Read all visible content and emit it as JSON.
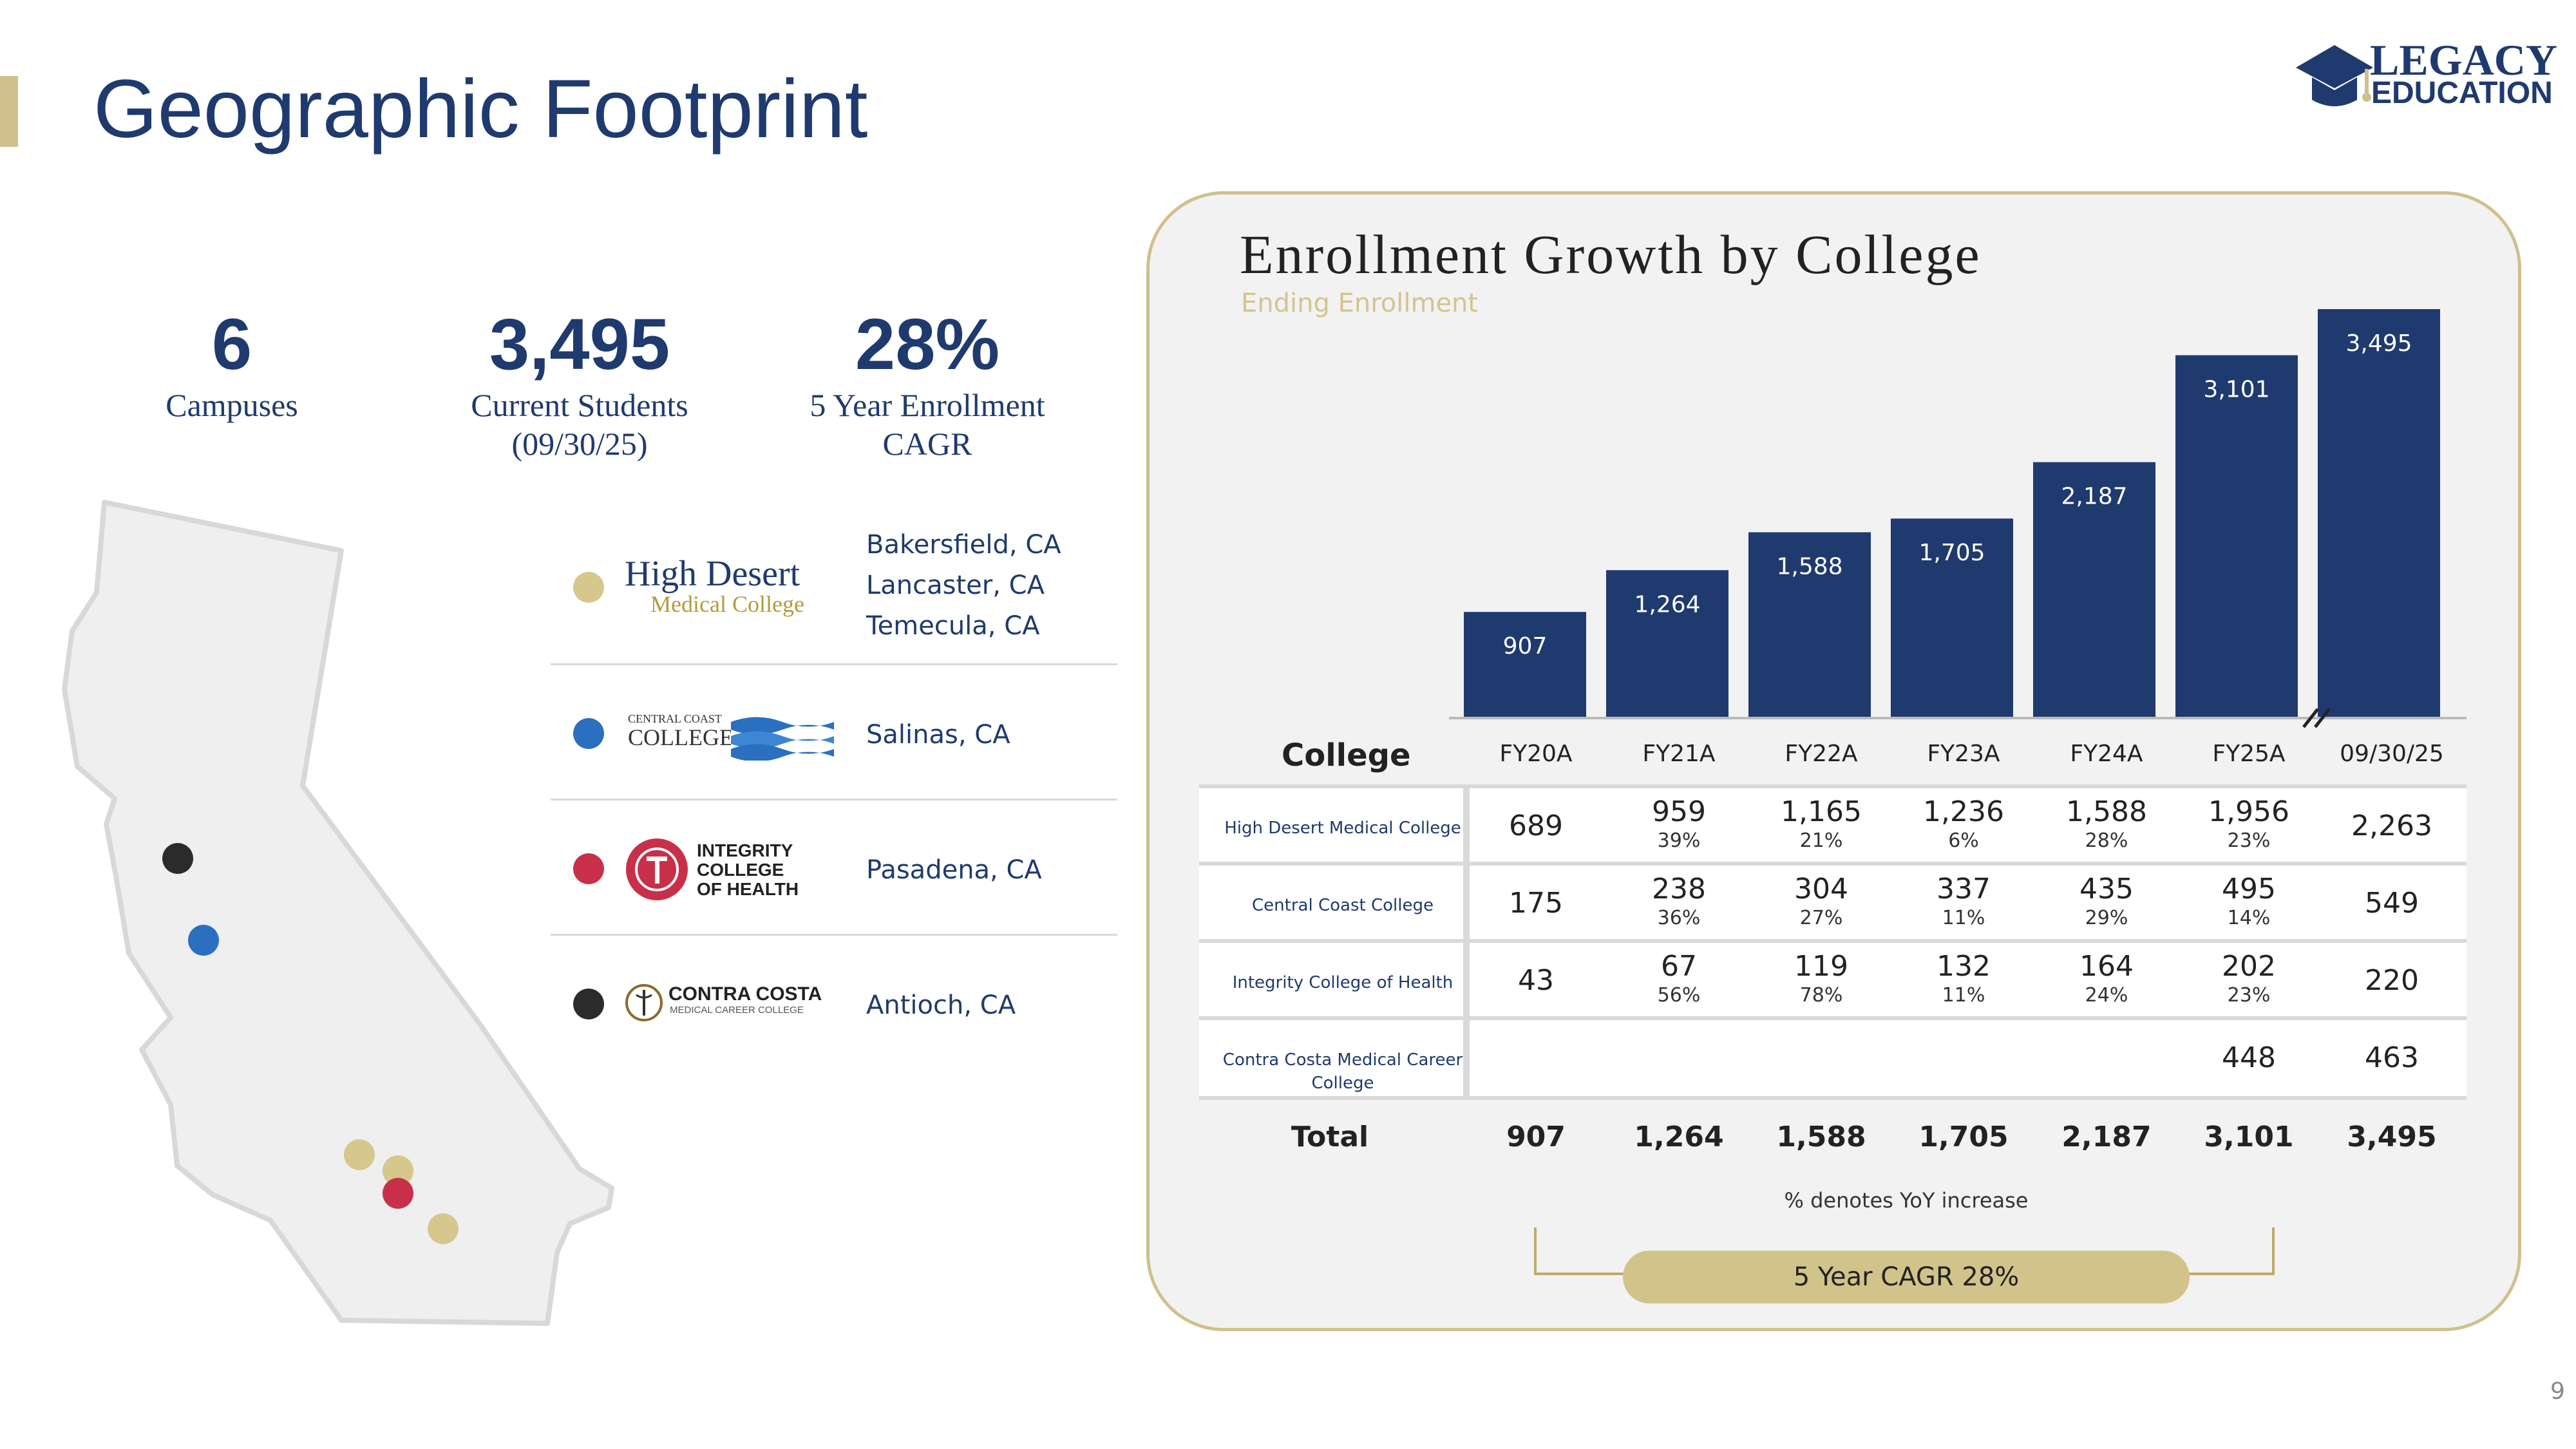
{
  "page": {
    "title": "Geographic Footprint",
    "page_number": "9"
  },
  "logo": {
    "line1": "LEGACY",
    "line2": "EDUCATION",
    "icon": "graduation-cap-icon"
  },
  "stats": [
    {
      "value": "6",
      "label": "Campuses",
      "label2": ""
    },
    {
      "value": "3,495",
      "label": "Current Students",
      "label2": "(09/30/25)"
    },
    {
      "value": "28%",
      "label": "5 Year Enrollment",
      "label2": "CAGR"
    }
  ],
  "colors": {
    "navy": "#1f3a6e",
    "gold": "#cfc08d",
    "blue": "#2a6fc0",
    "red": "#c8304a",
    "black": "#2b2b2b"
  },
  "colleges": [
    {
      "name_line1": "High Desert",
      "name_line2": "Medical College",
      "dot": "#d6c78d",
      "locations": [
        "Bakersfield, CA",
        "Lancaster, CA",
        "Temecula, CA"
      ]
    },
    {
      "name_line1": "CENTRAL COAST",
      "name_line2": "COLLEGE",
      "dot": "#2a6fc0",
      "locations": [
        "Salinas, CA"
      ]
    },
    {
      "name_line1": "INTEGRITY",
      "name_line2": "COLLEGE",
      "name_line3": "OF HEALTH",
      "dot": "#c8304a",
      "locations": [
        "Pasadena, CA"
      ]
    },
    {
      "name_line1": "CONTRA COSTA",
      "name_line2": "MEDICAL CAREER COLLEGE",
      "dot": "#2b2b2b",
      "locations": [
        "Antioch, CA"
      ]
    }
  ],
  "chart": {
    "title": "Enrollment Growth by College",
    "subtitle": "Ending Enrollment",
    "college_header": "College",
    "total_label": "Total",
    "footnote": "% denotes YoY increase",
    "cagr_label": "5 Year CAGR 28%"
  },
  "chart_data": {
    "type": "bar",
    "categories": [
      "FY20A",
      "FY21A",
      "FY22A",
      "FY23A",
      "FY24A",
      "FY25A",
      "09/30/25"
    ],
    "values": [
      907,
      1264,
      1588,
      1705,
      2187,
      3101,
      3495
    ],
    "value_labels": [
      "907",
      "1,264",
      "1,588",
      "1,705",
      "2,187",
      "3,101",
      "3,495"
    ],
    "title": "Enrollment Growth by College",
    "subtitle": "Ending Enrollment",
    "axis_break_before_last": true,
    "table": {
      "rows": [
        {
          "college": "High Desert Medical College",
          "values": [
            "689",
            "959",
            "1,165",
            "1,236",
            "1,588",
            "1,956",
            "2,263"
          ],
          "yoy": [
            "",
            "39%",
            "21%",
            "6%",
            "28%",
            "23%",
            ""
          ]
        },
        {
          "college": "Central Coast College",
          "values": [
            "175",
            "238",
            "304",
            "337",
            "435",
            "495",
            "549"
          ],
          "yoy": [
            "",
            "36%",
            "27%",
            "11%",
            "29%",
            "14%",
            ""
          ]
        },
        {
          "college": "Integrity College of Health",
          "values": [
            "43",
            "67",
            "119",
            "132",
            "164",
            "202",
            "220"
          ],
          "yoy": [
            "",
            "56%",
            "78%",
            "11%",
            "24%",
            "23%",
            ""
          ]
        },
        {
          "college": "Contra Costa Medical Career College",
          "values": [
            "",
            "",
            "",
            "",
            "",
            "448",
            "463"
          ],
          "yoy": [
            "",
            "",
            "",
            "",
            "",
            "",
            ""
          ]
        }
      ],
      "totals": [
        "907",
        "1,264",
        "1,588",
        "1,705",
        "2,187",
        "3,101",
        "3,495"
      ]
    }
  }
}
